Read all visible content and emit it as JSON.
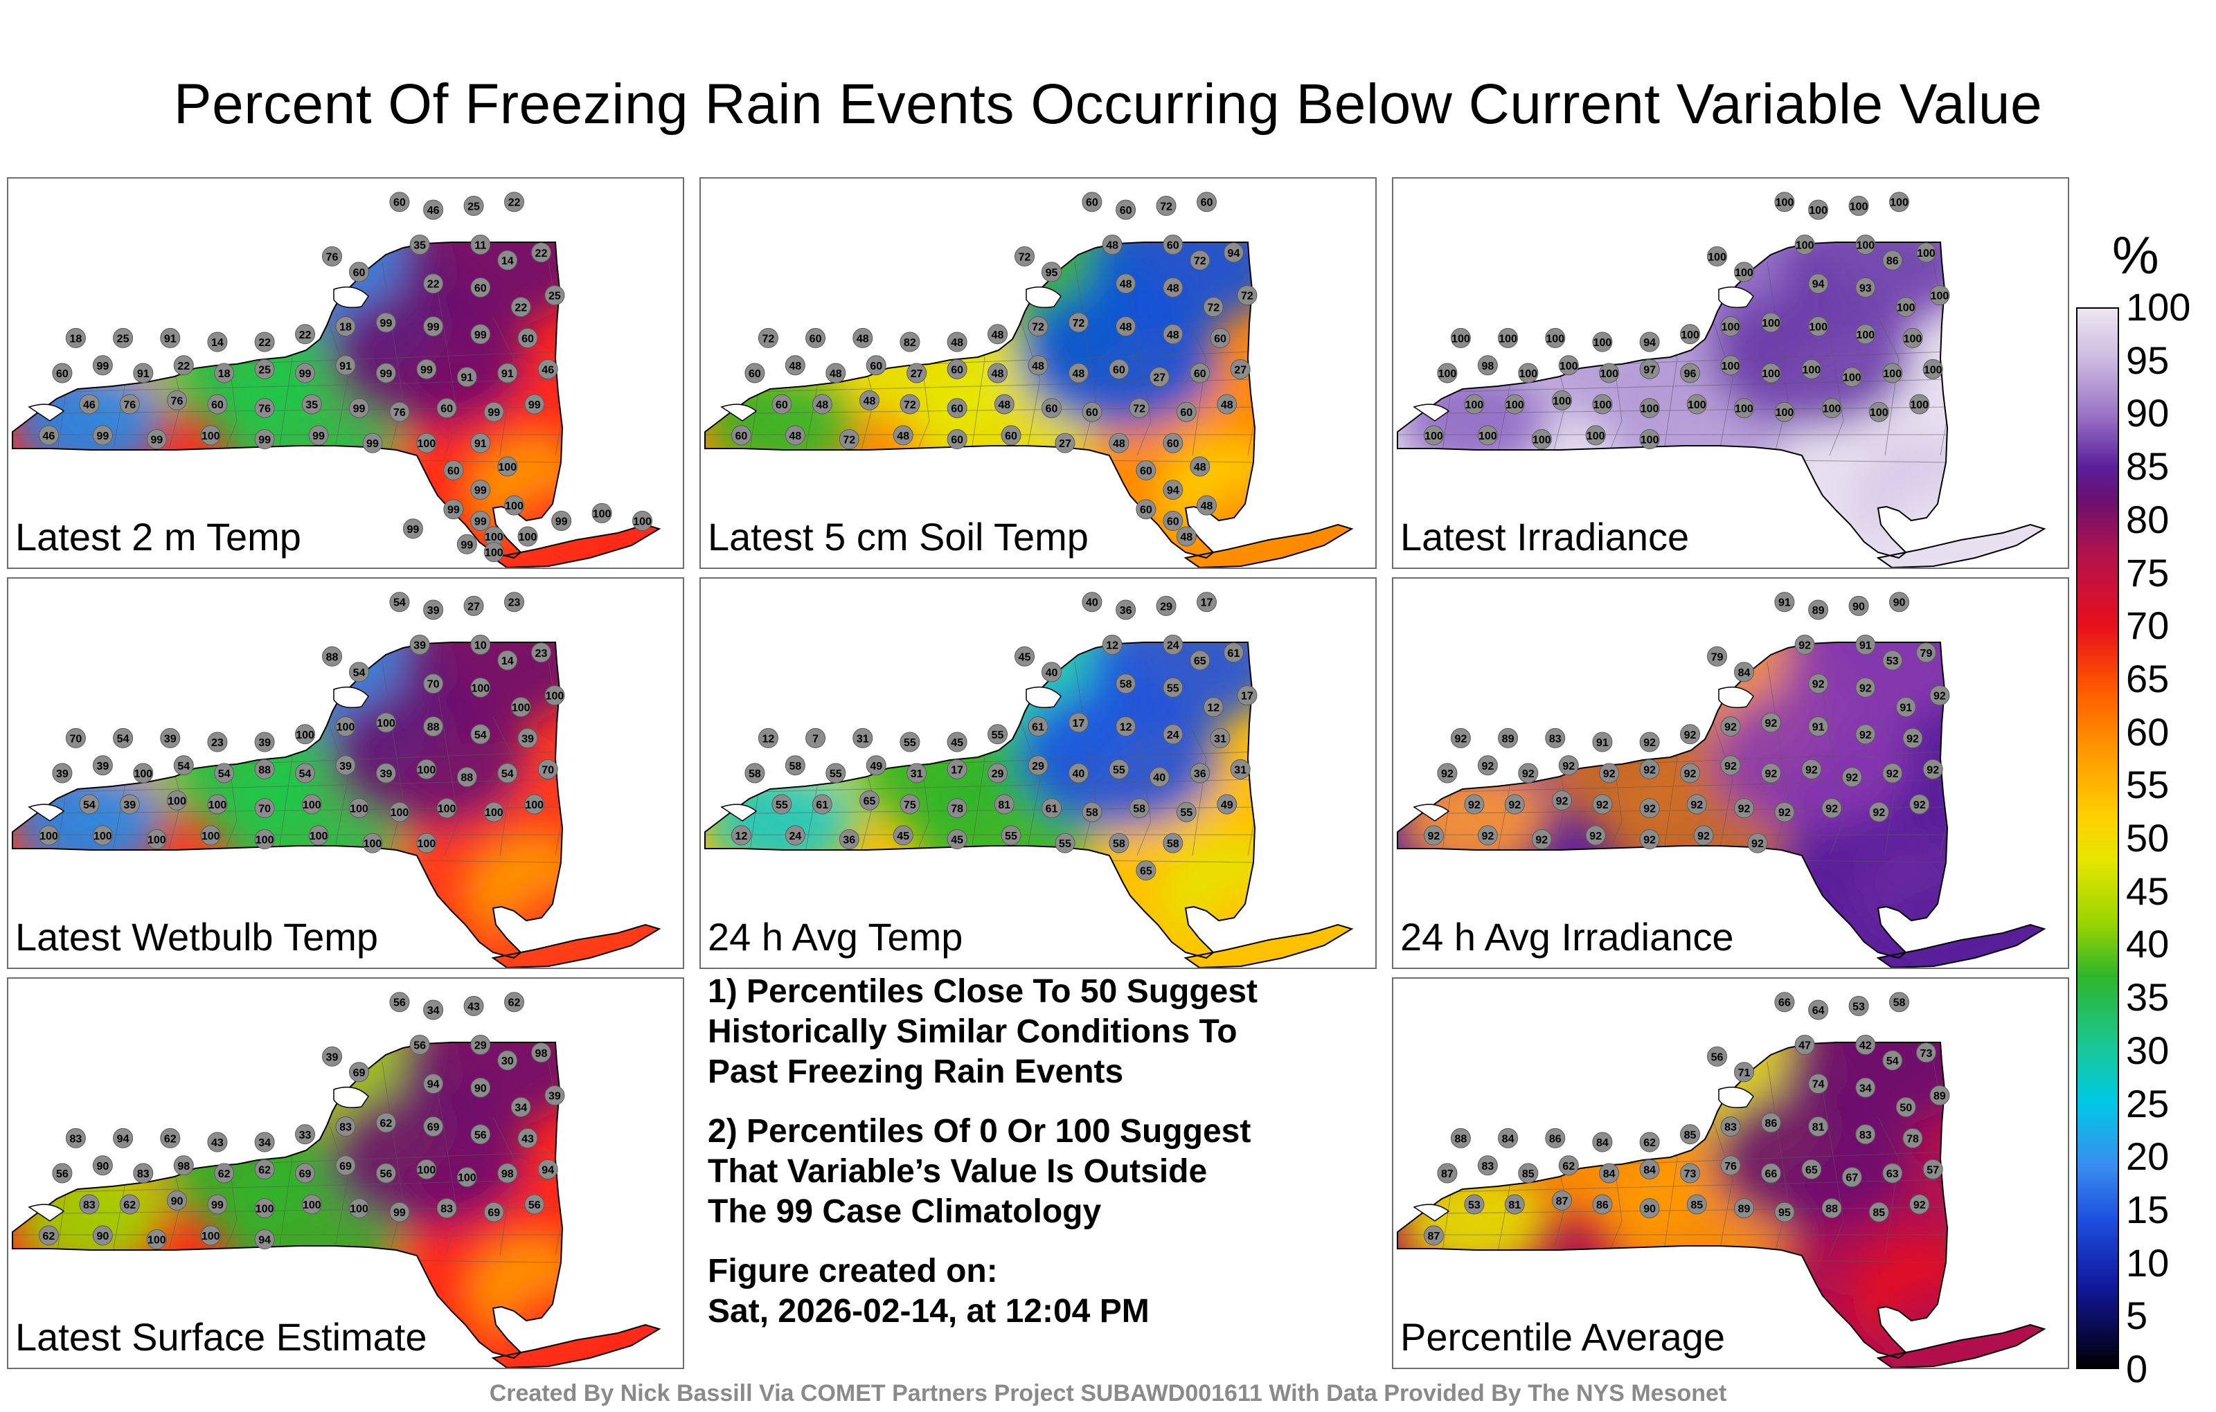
{
  "title": "Percent Of Freezing Rain Events Occurring Below Current Variable Value",
  "panels": [
    {
      "label": "Latest 2 m Temp",
      "colors": [
        "#ff2a1a",
        "#ffa000",
        "#1fc94a",
        "#1e8af0",
        "#6a1070"
      ],
      "values": [
        "60",
        "46",
        "25",
        "22",
        "76",
        "60",
        "35",
        "11",
        "14",
        "22",
        "22",
        "60",
        "22",
        "25",
        "18",
        "25",
        "91",
        "14",
        "22",
        "22",
        "18",
        "99",
        "99",
        "99",
        "60",
        "60",
        "99",
        "91",
        "22",
        "18",
        "25",
        "99",
        "91",
        "99",
        "99",
        "91",
        "91",
        "46",
        "46",
        "76",
        "76",
        "60",
        "76",
        "35",
        "99",
        "76",
        "60",
        "99",
        "99",
        "46",
        "99",
        "99",
        "100",
        "99",
        "99",
        "99",
        "100",
        "91",
        "60",
        "99",
        "100",
        "99",
        "99",
        "100",
        "100",
        "100",
        "99",
        "100",
        "100",
        "99",
        "100",
        "99"
      ]
    },
    {
      "label": "Latest 5 cm Soil Temp",
      "colors": [
        "#ff8a00",
        "#ffd000",
        "#e6e600",
        "#2fb52a",
        "#0a50e0"
      ],
      "values": [
        "60",
        "60",
        "72",
        "60",
        "72",
        "95",
        "48",
        "60",
        "72",
        "94",
        "48",
        "48",
        "72",
        "72",
        "72",
        "60",
        "48",
        "82",
        "48",
        "48",
        "72",
        "72",
        "48",
        "48",
        "60",
        "60",
        "48",
        "48",
        "60",
        "27",
        "60",
        "48",
        "48",
        "48",
        "60",
        "27",
        "60",
        "27",
        "60",
        "48",
        "48",
        "72",
        "60",
        "48",
        "60",
        "60",
        "72",
        "60",
        "48",
        "60",
        "48",
        "72",
        "48",
        "60",
        "60",
        "27",
        "48",
        "60",
        "60",
        "94",
        "48",
        "60",
        "60",
        "48",
        "48"
      ]
    },
    {
      "label": "Latest Irradiance",
      "colors": [
        "#e8e0f0",
        "#d6c8e8",
        "#b49ad6",
        "#8e68c4",
        "#6a3aa8"
      ],
      "values": [
        "100",
        "100",
        "100",
        "100",
        "100",
        "100",
        "100",
        "100",
        "86",
        "100",
        "94",
        "93",
        "100",
        "100",
        "100",
        "100",
        "100",
        "100",
        "94",
        "100",
        "100",
        "100",
        "100",
        "100",
        "100",
        "100",
        "98",
        "100",
        "100",
        "100",
        "97",
        "96",
        "100",
        "100",
        "100",
        "100",
        "100",
        "100",
        "100",
        "100",
        "100",
        "100",
        "100",
        "100",
        "100",
        "100",
        "100",
        "100",
        "100",
        "100",
        "100",
        "100",
        "100",
        "100"
      ]
    },
    {
      "label": "Latest Wetbulb Temp",
      "colors": [
        "#ff3a1a",
        "#ffa000",
        "#1fc94a",
        "#1e8af0",
        "#6a1070"
      ],
      "values": [
        "54",
        "39",
        "27",
        "23",
        "88",
        "54",
        "39",
        "10",
        "14",
        "23",
        "70",
        "100",
        "100",
        "100",
        "70",
        "54",
        "39",
        "23",
        "39",
        "100",
        "100",
        "100",
        "88",
        "54",
        "39",
        "39",
        "39",
        "100",
        "54",
        "54",
        "88",
        "54",
        "39",
        "39",
        "100",
        "88",
        "54",
        "70",
        "54",
        "39",
        "100",
        "100",
        "70",
        "100",
        "100",
        "100",
        "100",
        "100",
        "100",
        "100",
        "100",
        "100",
        "100",
        "100",
        "100",
        "100",
        "100"
      ]
    },
    {
      "label": "24 h Avg Temp",
      "colors": [
        "#ffc000",
        "#e6e600",
        "#2fb52a",
        "#18c8c8",
        "#1e4fe0"
      ],
      "values": [
        "40",
        "36",
        "29",
        "17",
        "45",
        "40",
        "12",
        "24",
        "65",
        "61",
        "58",
        "55",
        "12",
        "17",
        "12",
        "7",
        "31",
        "55",
        "45",
        "55",
        "61",
        "17",
        "12",
        "24",
        "31",
        "58",
        "58",
        "55",
        "49",
        "31",
        "17",
        "29",
        "29",
        "40",
        "55",
        "40",
        "36",
        "31",
        "55",
        "61",
        "65",
        "75",
        "78",
        "81",
        "61",
        "58",
        "58",
        "55",
        "49",
        "12",
        "24",
        "36",
        "45",
        "45",
        "55",
        "55",
        "58",
        "58",
        "65"
      ]
    },
    {
      "label": "24 h Avg Irradiance",
      "colors": [
        "#5a1f9a",
        "#6a2aa0",
        "#d07020",
        "#ff9a30",
        "#8a3ab0"
      ],
      "values": [
        "91",
        "89",
        "90",
        "90",
        "79",
        "84",
        "92",
        "91",
        "53",
        "79",
        "92",
        "92",
        "91",
        "92",
        "92",
        "89",
        "83",
        "91",
        "92",
        "92",
        "92",
        "92",
        "91",
        "92",
        "92",
        "92",
        "92",
        "92",
        "92",
        "92",
        "92",
        "92",
        "92",
        "92",
        "92",
        "92",
        "92",
        "92",
        "92",
        "92",
        "92",
        "92",
        "92",
        "92",
        "92",
        "92",
        "92",
        "92",
        "92",
        "92",
        "92",
        "92",
        "92",
        "92",
        "92",
        "92"
      ]
    },
    {
      "label": "Latest Surface Estimate",
      "colors": [
        "#ff2a1a",
        "#ffa000",
        "#2fb52a",
        "#9ad400",
        "#6a1070"
      ],
      "values": [
        "56",
        "34",
        "43",
        "62",
        "39",
        "69",
        "56",
        "29",
        "30",
        "98",
        "94",
        "90",
        "34",
        "39",
        "83",
        "94",
        "62",
        "43",
        "34",
        "33",
        "83",
        "62",
        "69",
        "56",
        "43",
        "56",
        "90",
        "83",
        "98",
        "62",
        "62",
        "69",
        "69",
        "56",
        "100",
        "100",
        "98",
        "94",
        "83",
        "62",
        "90",
        "99",
        "100",
        "100",
        "100",
        "99",
        "83",
        "69",
        "56",
        "62",
        "90",
        "100",
        "100",
        "94"
      ]
    },
    {
      "label": "Percentile Average",
      "colors": [
        "#b0124e",
        "#e8101a",
        "#ff9a00",
        "#e6e600",
        "#6a1070"
      ],
      "values": [
        "66",
        "64",
        "53",
        "58",
        "56",
        "71",
        "47",
        "42",
        "54",
        "73",
        "74",
        "34",
        "50",
        "89",
        "88",
        "84",
        "86",
        "84",
        "62",
        "85",
        "83",
        "86",
        "81",
        "83",
        "78",
        "87",
        "83",
        "85",
        "62",
        "84",
        "84",
        "73",
        "76",
        "66",
        "65",
        "67",
        "63",
        "57",
        "53",
        "81",
        "87",
        "86",
        "90",
        "85",
        "89",
        "95",
        "88",
        "85",
        "92",
        "87"
      ]
    }
  ],
  "notes": {
    "line1": "1) Percentiles Close To 50 Suggest",
    "line2": "Historically Similar Conditions To",
    "line3": "Past Freezing Rain Events",
    "line4": "2) Percentiles Of 0 Or 100 Suggest",
    "line5": "That Variable’s Value Is Outside",
    "line6": "The 99 Case Climatology",
    "line7": "Figure created on:",
    "line8": "Sat, 2026-02-14, at 12:04 PM"
  },
  "colorbar": {
    "unit": "%",
    "ticks": [
      "100",
      "95",
      "90",
      "85",
      "80",
      "75",
      "70",
      "65",
      "60",
      "55",
      "50",
      "45",
      "40",
      "35",
      "30",
      "25",
      "20",
      "15",
      "10",
      "5",
      "0"
    ]
  },
  "credit": "Created By Nick Bassill Via COMET Partners Project SUBAWD001611 With Data Provided By The NYS Mesonet"
}
